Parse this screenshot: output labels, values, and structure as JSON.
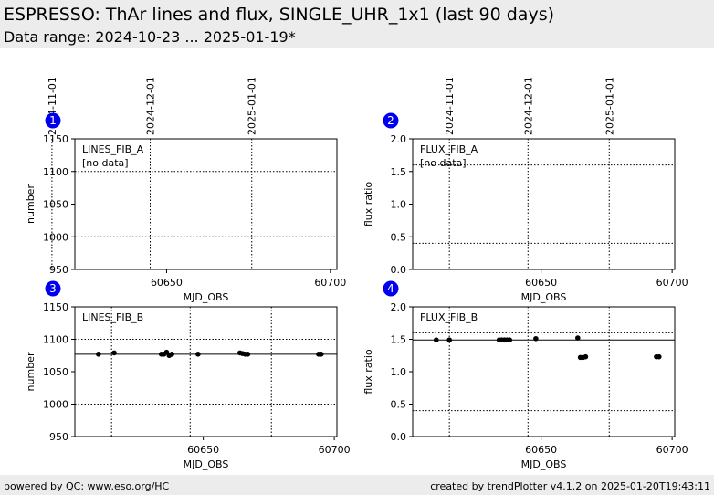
{
  "header": {
    "title": "ESPRESSO: ThAr lines and flux, SINGLE_UHR_1x1 (last 90 days)",
    "subtitle": "Data range: 2024-10-23 ... 2025-01-19*"
  },
  "footer": {
    "left": "powered by QC: www.eso.org/HC",
    "right": "created by trendPlotter v4.1.2 on 2025-01-20T19:43:11"
  },
  "colors": {
    "badge": "#0000ee",
    "points": "#000000",
    "background": "#ececec"
  },
  "chart_data": [
    {
      "type": "scatter",
      "badge": "1",
      "label": "LINES_FIB_A",
      "note": "[no data]",
      "xlabel": "MJD_OBS",
      "ylabel": "number",
      "xlim": [
        60622,
        60702
      ],
      "ylim": [
        950,
        1150
      ],
      "xticks": [
        60650,
        60700
      ],
      "yticks": [
        950,
        1000,
        1050,
        1100,
        1150
      ],
      "date_markers": [
        {
          "x": 60615,
          "label": "2024-11-01"
        },
        {
          "x": 60645,
          "label": "2024-12-01"
        },
        {
          "x": 60676,
          "label": "2025-01-01"
        }
      ],
      "hlines_dotted": [
        1000,
        1100
      ],
      "hline_solid": null,
      "points": []
    },
    {
      "type": "scatter",
      "badge": "2",
      "label": "FLUX_FIB_A",
      "note": "[no data]",
      "xlabel": "MJD_OBS",
      "ylabel": "flux ratio",
      "xlim": [
        60601,
        60701
      ],
      "ylim": [
        0.0,
        2.0
      ],
      "xticks": [
        60650,
        60700
      ],
      "yticks": [
        0.0,
        0.5,
        1.0,
        1.5,
        2.0
      ],
      "date_markers": [
        {
          "x": 60615,
          "label": "2024-11-01"
        },
        {
          "x": 60645,
          "label": "2024-12-01"
        },
        {
          "x": 60676,
          "label": "2025-01-01"
        }
      ],
      "hlines_dotted": [
        0.4,
        1.6
      ],
      "hline_solid": null,
      "points": []
    },
    {
      "type": "scatter",
      "badge": "3",
      "label": "LINES_FIB_B",
      "note": "",
      "xlabel": "MJD_OBS",
      "ylabel": "number",
      "xlim": [
        60601,
        60701
      ],
      "ylim": [
        950,
        1150
      ],
      "xticks": [
        60650,
        60700
      ],
      "yticks": [
        950,
        1000,
        1050,
        1100,
        1150
      ],
      "date_markers": [
        {
          "x": 60615,
          "label": "2024-11-01"
        },
        {
          "x": 60645,
          "label": "2024-12-01"
        },
        {
          "x": 60676,
          "label": "2025-01-01"
        }
      ],
      "hlines_dotted": [
        1000,
        1100
      ],
      "hline_solid": 1077,
      "points": [
        [
          60610,
          1077
        ],
        [
          60616,
          1079
        ],
        [
          60634,
          1077
        ],
        [
          60635,
          1077
        ],
        [
          60636,
          1080
        ],
        [
          60637,
          1075
        ],
        [
          60638,
          1077
        ],
        [
          60648,
          1077
        ],
        [
          60664,
          1079
        ],
        [
          60665,
          1078
        ],
        [
          60666,
          1077
        ],
        [
          60667,
          1077
        ],
        [
          60694,
          1077
        ],
        [
          60695,
          1077
        ]
      ]
    },
    {
      "type": "scatter",
      "badge": "4",
      "label": "FLUX_FIB_B",
      "note": "",
      "xlabel": "MJD_OBS",
      "ylabel": "flux ratio",
      "xlim": [
        60601,
        60701
      ],
      "ylim": [
        0.0,
        2.0
      ],
      "xticks": [
        60650,
        60700
      ],
      "yticks": [
        0.0,
        0.5,
        1.0,
        1.5,
        2.0
      ],
      "date_markers": [
        {
          "x": 60615,
          "label": "2024-11-01"
        },
        {
          "x": 60645,
          "label": "2024-12-01"
        },
        {
          "x": 60676,
          "label": "2025-01-01"
        }
      ],
      "hlines_dotted": [
        0.4,
        1.6
      ],
      "hline_solid": 1.49,
      "points": [
        [
          60610,
          1.49
        ],
        [
          60615,
          1.49
        ],
        [
          60634,
          1.49
        ],
        [
          60635,
          1.49
        ],
        [
          60636,
          1.49
        ],
        [
          60637,
          1.49
        ],
        [
          60638,
          1.49
        ],
        [
          60648,
          1.51
        ],
        [
          60664,
          1.52
        ],
        [
          60665,
          1.22
        ],
        [
          60666,
          1.22
        ],
        [
          60667,
          1.23
        ],
        [
          60694,
          1.23
        ],
        [
          60695,
          1.23
        ]
      ]
    }
  ]
}
